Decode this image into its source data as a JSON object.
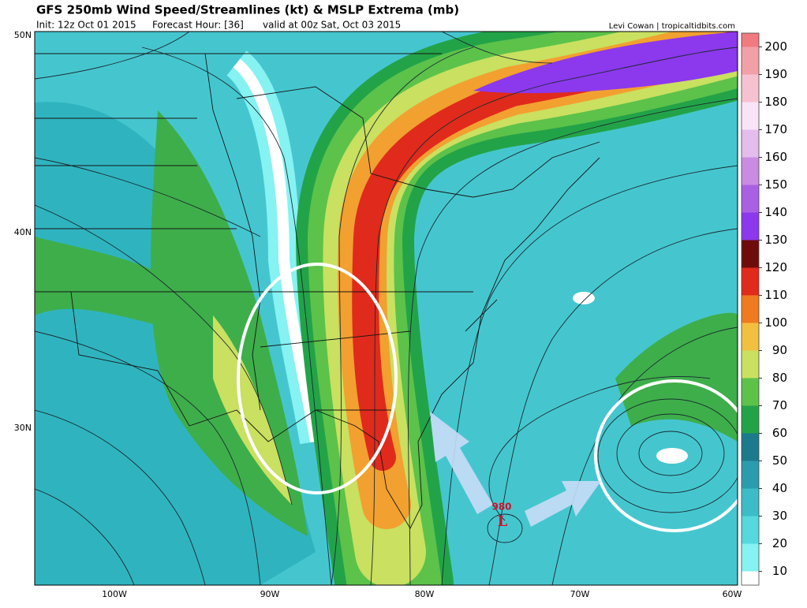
{
  "header": {
    "title": "GFS 250mb Wind Speed/Streamlines (kt) & MSLP Extrema (mb)",
    "init": "Init: 12z Oct 01 2015",
    "forecast_hour": "Forecast Hour: [36]",
    "valid": "valid at 00z Sat, Oct 03 2015",
    "credit": "Levi Cowan | tropicaltidbits.com"
  },
  "map": {
    "latitude_labels": [
      "50N",
      "40N",
      "30N"
    ],
    "longitude_labels": [
      "100W",
      "90W",
      "80W",
      "70W",
      "60W"
    ],
    "low": {
      "pressure": "980",
      "symbol": "L"
    }
  },
  "colorbar": {
    "lim": [
      5,
      205
    ],
    "levels": [
      10,
      20,
      30,
      40,
      50,
      60,
      70,
      80,
      90,
      100,
      110,
      120,
      130,
      140,
      150,
      160,
      170,
      180,
      190,
      200
    ],
    "colors": [
      "#ffffff",
      "#86f2f2",
      "#55d8de",
      "#3cbcc6",
      "#2b9cae",
      "#1b7a8c",
      "#23a348",
      "#5cc24a",
      "#c9e060",
      "#f2c040",
      "#f07a20",
      "#e02a1c",
      "#6e0c0c",
      "#8c38ec",
      "#aa60e2",
      "#c98ce2",
      "#e3bdec",
      "#f8e4f6",
      "#f6c2d2",
      "#f2a0a8",
      "#f07a80"
    ]
  }
}
